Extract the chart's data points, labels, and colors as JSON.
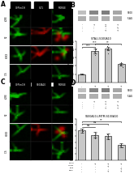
{
  "panel_b": {
    "title": "S-TALI-S100A10",
    "bars": [
      1.0,
      3.8,
      4.1,
      2.2
    ],
    "errors": [
      0.08,
      0.25,
      0.22,
      0.18
    ],
    "bar_colors": [
      "#c8c8c8",
      "#c8c8c8",
      "#c8c8c8",
      "#c8c8c8"
    ],
    "ylim": [
      0,
      5.0
    ],
    "ylabel": "Relative protein level",
    "sig_pairs": [
      [
        "***",
        0,
        1
      ],
      [
        "***",
        0,
        2
      ],
      [
        "**",
        1,
        3
      ]
    ],
    "xtick_rows": [
      [
        "D-Ala",
        "-",
        "+",
        "+",
        "+"
      ],
      [
        "LMTM",
        "-",
        "-",
        "+",
        "-"
      ],
      [
        "Flag",
        "-",
        "-",
        "-",
        "+"
      ],
      [
        "Com.",
        "-",
        "-",
        "+",
        "+"
      ]
    ],
    "wb_labels": [
      "S100",
      "FLAG"
    ]
  },
  "panel_d": {
    "title": "S100A10-LMTM-S100A10",
    "bars": [
      1.0,
      0.85,
      0.8,
      0.5
    ],
    "errors": [
      0.07,
      0.09,
      0.1,
      0.06
    ],
    "bar_colors": [
      "#c8c8c8",
      "#c8c8c8",
      "#c8c8c8",
      "#c8c8c8"
    ],
    "ylim": [
      0,
      1.4
    ],
    "ylabel": "Relative protein level",
    "sig_pairs": [
      [
        "ns",
        0,
        1
      ],
      [
        "ns",
        0,
        2
      ],
      [
        "**",
        0,
        3
      ]
    ],
    "xtick_rows": [
      [
        "D-Ala",
        "-",
        "+",
        "+",
        "+"
      ],
      [
        "LMTM",
        "-",
        "-",
        "+",
        "-"
      ],
      [
        "Flag",
        "-",
        "-",
        "-",
        "+"
      ],
      [
        "Com.",
        "-",
        "-",
        "+",
        "+"
      ]
    ],
    "wb_labels": [
      "S100",
      "FLAG"
    ]
  },
  "bg_color": "#ffffff",
  "label_fontsize": 3.2,
  "tick_fontsize": 2.8,
  "title_fontsize": 3.2,
  "micro_A": {
    "col_headers": [
      "GFP/mCH",
      "S-T1",
      "MERGE"
    ],
    "row_labels": [
      "sCRE",
      "S2",
      "HEK3",
      "C-S"
    ],
    "red_rows": [
      1,
      2
    ],
    "panel_label": "A"
  },
  "micro_C": {
    "col_headers": [
      "GFP/mCH",
      "S100A10",
      "MERGE"
    ],
    "row_labels": [
      "sCRE",
      "S2",
      "HEK3",
      "C-S"
    ],
    "red_rows": [
      2
    ],
    "panel_label": "C"
  }
}
